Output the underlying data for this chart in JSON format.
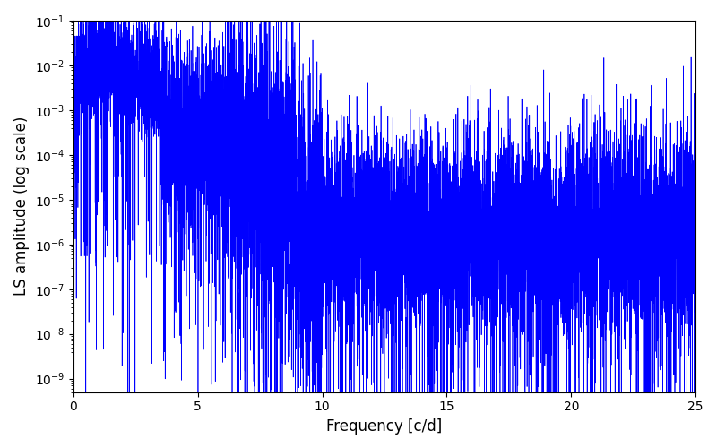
{
  "title": "",
  "xlabel": "Frequency [c/d]",
  "ylabel": "LS amplitude (log scale)",
  "xlim": [
    0,
    25
  ],
  "ylim": [
    5e-10,
    0.1
  ],
  "line_color": "#0000ff",
  "line_width": 0.5,
  "yscale": "log",
  "figsize": [
    8.0,
    5.0
  ],
  "dpi": 100,
  "n_points": 10000,
  "freq_max": 25.0,
  "background_color": "#ffffff"
}
